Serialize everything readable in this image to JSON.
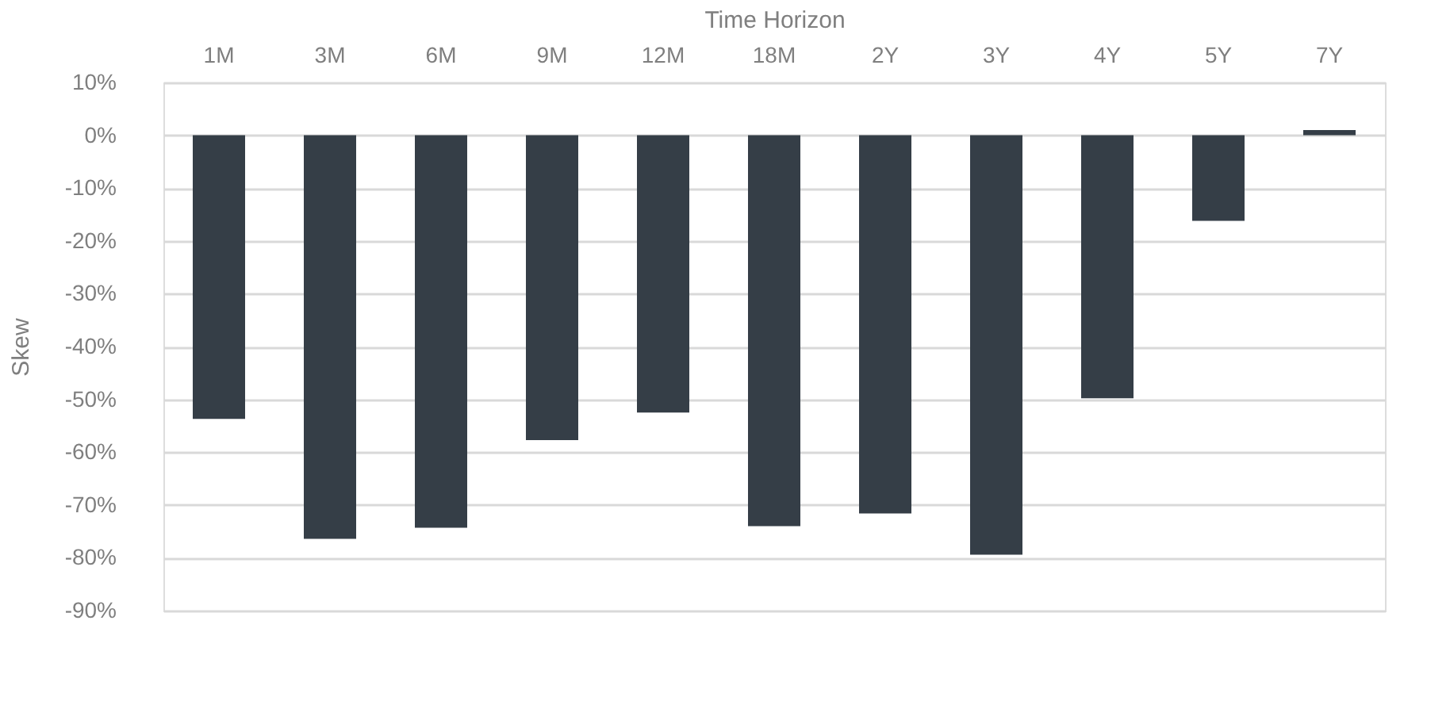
{
  "chart_data": {
    "type": "bar",
    "xlabel": "Time Horizon",
    "ylabel": "Skew",
    "categories": [
      "1M",
      "3M",
      "6M",
      "9M",
      "12M",
      "18M",
      "2Y",
      "3Y",
      "4Y",
      "5Y",
      "7Y"
    ],
    "values": [
      -53.7,
      -76.4,
      -74.3,
      -57.7,
      -52.5,
      -74.0,
      -71.6,
      -79.4,
      -49.8,
      -16.2,
      1.0
    ],
    "color": "#353e47",
    "ylim": [
      -90,
      10
    ],
    "yticks": [
      {
        "value": 10,
        "label": "10%"
      },
      {
        "value": 0,
        "label": "0%"
      },
      {
        "value": -10,
        "label": "-10%"
      },
      {
        "value": -20,
        "label": "-20%"
      },
      {
        "value": -30,
        "label": "-30%"
      },
      {
        "value": -40,
        "label": "-40%"
      },
      {
        "value": -50,
        "label": "-50%"
      },
      {
        "value": -60,
        "label": "-60%"
      },
      {
        "value": -70,
        "label": "-70%"
      },
      {
        "value": -80,
        "label": "-80%"
      },
      {
        "value": -90,
        "label": "-90%"
      }
    ],
    "grid": "y"
  }
}
